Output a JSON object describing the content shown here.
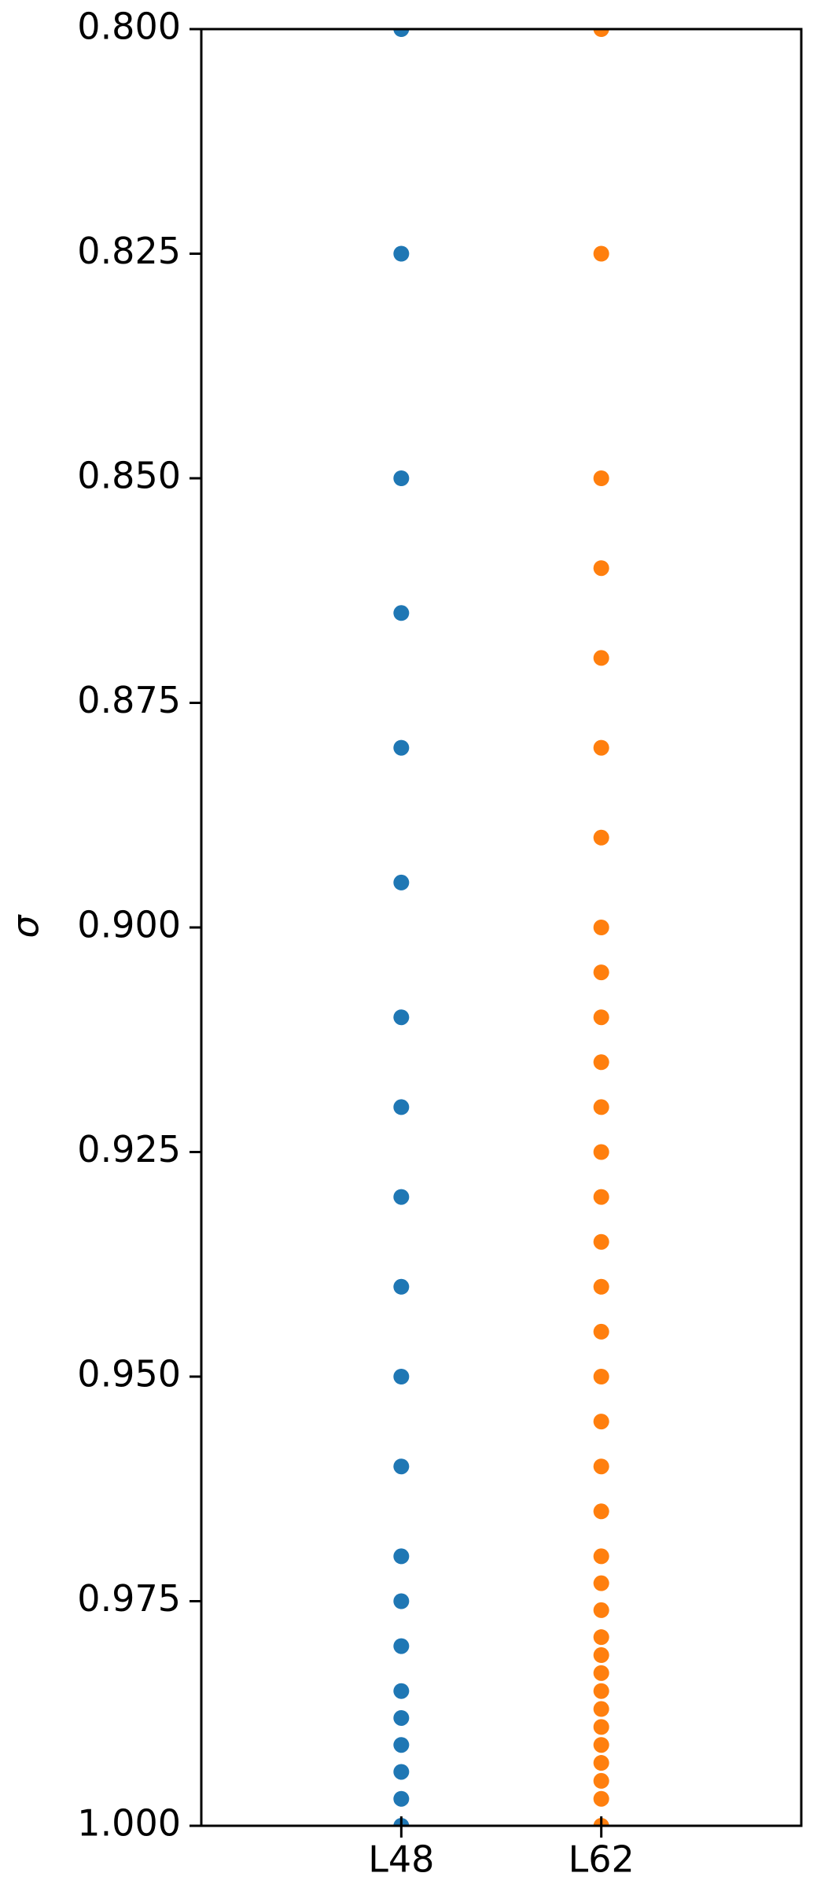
{
  "chart_data": {
    "type": "scatter",
    "y_label": "σ",
    "categories": [
      "L48",
      "L62"
    ],
    "series": [
      {
        "color": "#1f77b4",
        "values": [
          0.8,
          0.825,
          0.85,
          0.865,
          0.88,
          0.895,
          0.91,
          0.92,
          0.93,
          0.94,
          0.95,
          0.96,
          0.97,
          0.975,
          0.98,
          0.985,
          0.988,
          0.991,
          0.994,
          0.997,
          1.0
        ]
      },
      {
        "color": "#ff7f0e",
        "values": [
          0.8,
          0.825,
          0.85,
          0.86,
          0.87,
          0.88,
          0.89,
          0.9,
          0.905,
          0.91,
          0.915,
          0.92,
          0.925,
          0.93,
          0.935,
          0.94,
          0.945,
          0.95,
          0.955,
          0.96,
          0.965,
          0.97,
          0.973,
          0.976,
          0.979,
          0.981,
          0.983,
          0.985,
          0.987,
          0.989,
          0.991,
          0.993,
          0.995,
          0.997,
          1.0
        ]
      }
    ],
    "ylim": [
      0.8,
      1.0
    ],
    "y_inverted": true,
    "yticks": [
      {
        "value": 0.8,
        "label": "0.800"
      },
      {
        "value": 0.825,
        "label": "0.825"
      },
      {
        "value": 0.85,
        "label": "0.850"
      },
      {
        "value": 0.875,
        "label": "0.875"
      },
      {
        "value": 0.9,
        "label": "0.900"
      },
      {
        "value": 0.925,
        "label": "0.925"
      },
      {
        "value": 0.95,
        "label": "0.950"
      },
      {
        "value": 0.975,
        "label": "0.975"
      },
      {
        "value": 1.0,
        "label": "1.000"
      }
    ],
    "grid": false
  }
}
